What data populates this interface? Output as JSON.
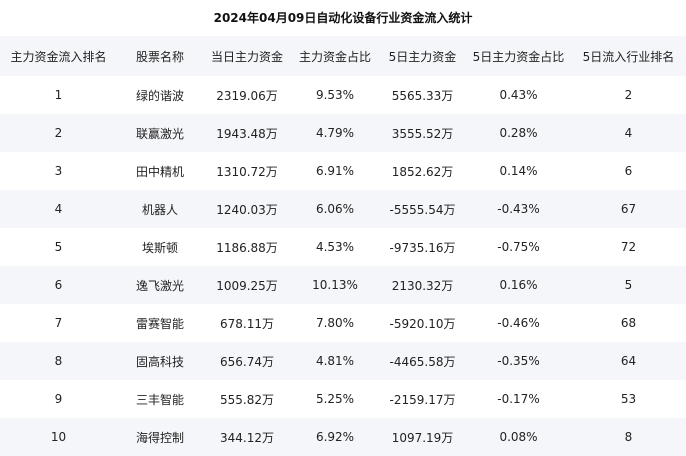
{
  "title": "2024年04月09日自动化设备行业资金流入统计",
  "table": {
    "headers": [
      "主力资金流入排名",
      "股票名称",
      "当日主力资金",
      "主力资金占比",
      "5日主力资金",
      "5日主力资金占比",
      "5日流入行业排名"
    ],
    "rows": [
      [
        "1",
        "绿的谐波",
        "2319.06万",
        "9.53%",
        "5565.33万",
        "0.43%",
        "2"
      ],
      [
        "2",
        "联赢激光",
        "1943.48万",
        "4.79%",
        "3555.52万",
        "0.28%",
        "4"
      ],
      [
        "3",
        "田中精机",
        "1310.72万",
        "6.91%",
        "1852.62万",
        "0.14%",
        "6"
      ],
      [
        "4",
        "机器人",
        "1240.03万",
        "6.06%",
        "-5555.54万",
        "-0.43%",
        "67"
      ],
      [
        "5",
        "埃斯顿",
        "1186.88万",
        "4.53%",
        "-9735.16万",
        "-0.75%",
        "72"
      ],
      [
        "6",
        "逸飞激光",
        "1009.25万",
        "10.13%",
        "2130.32万",
        "0.16%",
        "5"
      ],
      [
        "7",
        "雷赛智能",
        "678.11万",
        "7.80%",
        "-5920.10万",
        "-0.46%",
        "68"
      ],
      [
        "8",
        "固高科技",
        "656.74万",
        "4.81%",
        "-4465.58万",
        "-0.35%",
        "64"
      ],
      [
        "9",
        "三丰智能",
        "555.82万",
        "5.25%",
        "-2159.17万",
        "-0.17%",
        "53"
      ],
      [
        "10",
        "海得控制",
        "344.12万",
        "6.92%",
        "1097.19万",
        "0.08%",
        "8"
      ]
    ]
  }
}
